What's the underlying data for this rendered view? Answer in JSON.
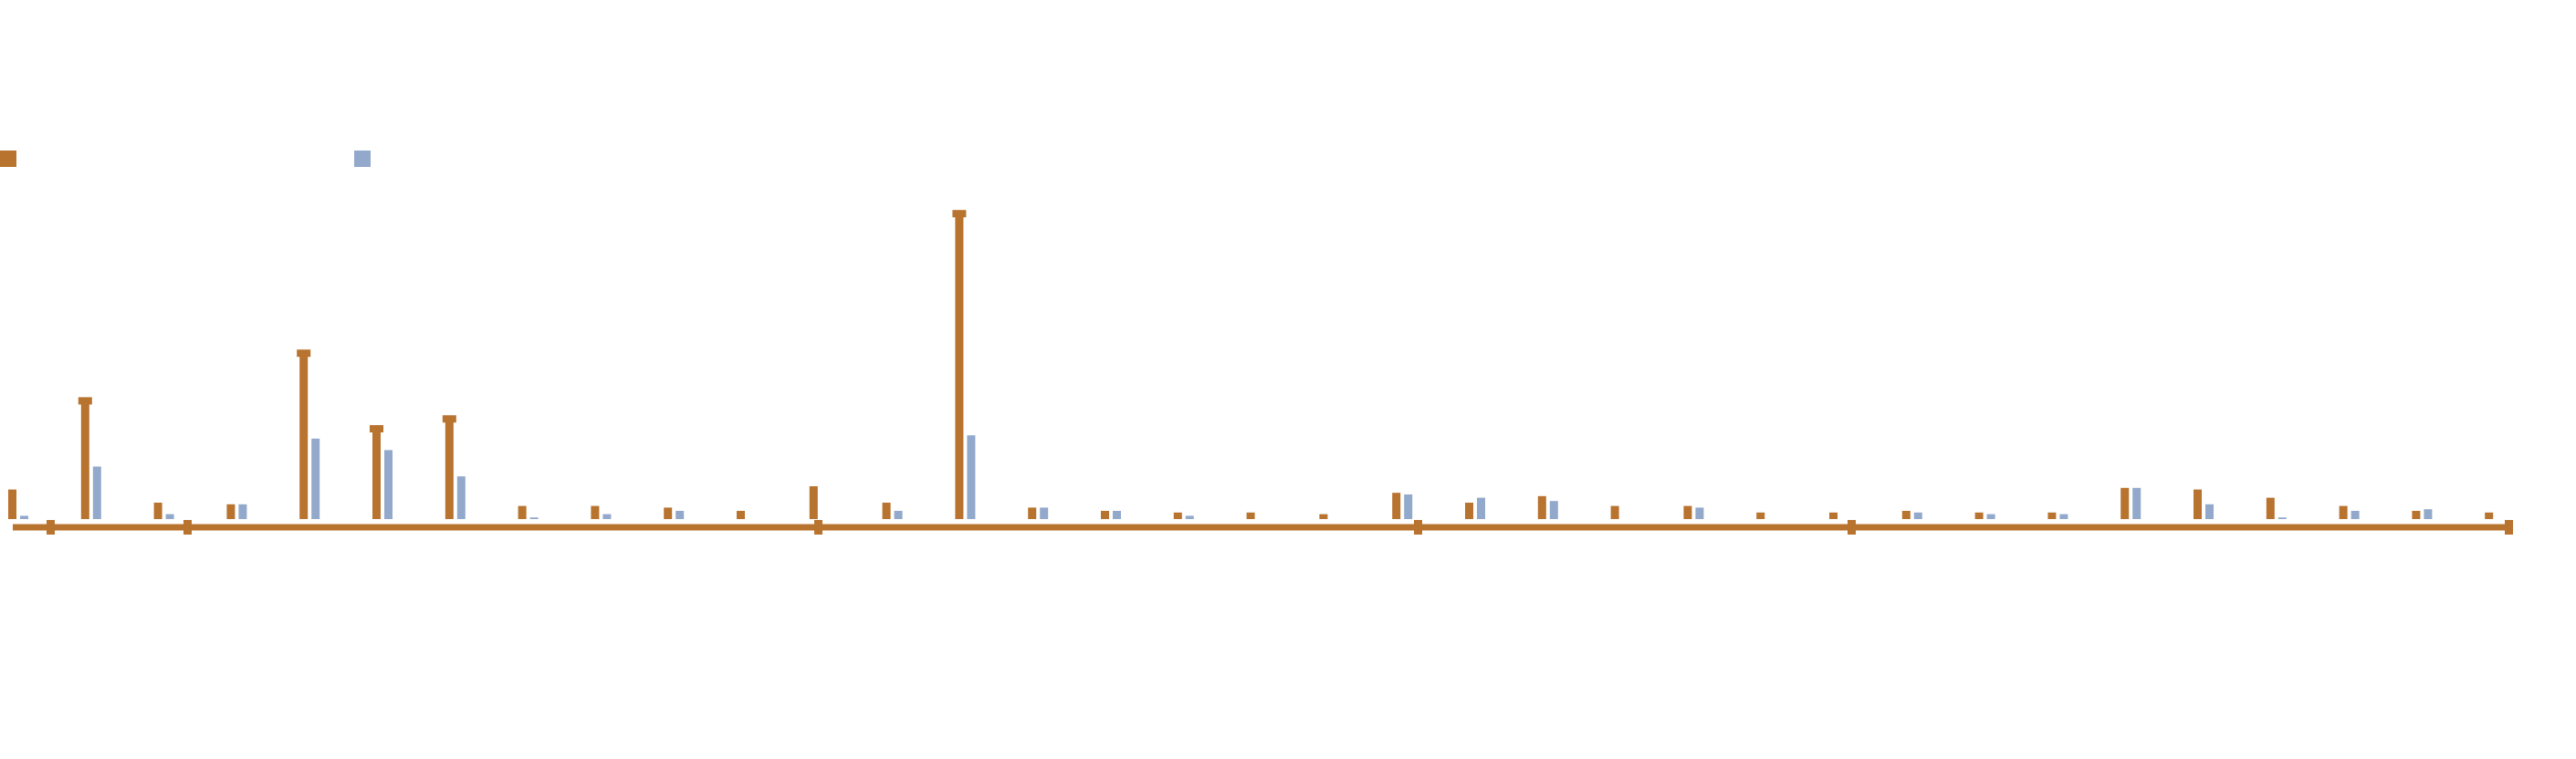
{
  "chart_data": {
    "type": "bar",
    "categories": [
      null,
      null,
      null,
      null,
      null,
      null,
      null,
      null,
      null,
      null,
      null,
      null,
      null,
      null,
      null,
      null,
      null,
      null,
      null,
      null,
      null,
      null,
      null,
      null,
      null,
      null,
      null,
      null,
      null,
      null,
      null,
      null,
      null,
      null,
      null
    ],
    "series": [
      {
        "color": "#b8732f",
        "values": [
          18,
          72,
          10,
          9,
          101,
          55,
          61,
          8,
          8,
          7,
          5,
          20,
          10,
          186,
          7,
          5,
          4,
          4,
          3,
          16,
          10,
          14,
          8,
          8,
          4,
          4,
          5,
          4,
          4,
          19,
          18,
          13,
          8,
          5,
          4
        ]
      },
      {
        "color": "#92a9cc",
        "values": [
          2,
          32,
          3,
          9,
          49,
          42,
          26,
          1,
          3,
          5,
          0,
          0,
          5,
          51,
          7,
          5,
          2,
          0,
          0,
          15,
          13,
          11,
          0,
          7,
          0,
          0,
          4,
          3,
          3,
          19,
          9,
          1,
          5,
          6,
          0
        ]
      }
    ],
    "ylim": [
      0,
      200
    ],
    "legend": "top-left"
  }
}
